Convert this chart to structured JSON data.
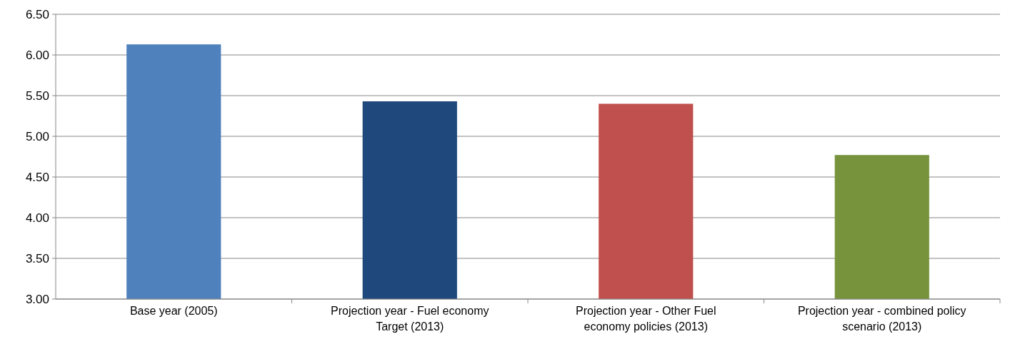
{
  "chart_data": {
    "type": "bar",
    "categories": [
      "Base year (2005)",
      "Projection year - Fuel economy Target (2013)",
      "Projection year - Other Fuel economy policies (2013)",
      "Projection year - combined policy scenario (2013)"
    ],
    "values": [
      6.13,
      5.43,
      5.4,
      4.77
    ],
    "colors": [
      "#4f81bd",
      "#1f497d",
      "#c0504d",
      "#77933c"
    ],
    "ylim": [
      3,
      6.5
    ],
    "yticks": [
      {
        "value": 3,
        "label": "3.00"
      },
      {
        "value": 3.5,
        "label": "3.50"
      },
      {
        "value": 4,
        "label": "4.00"
      },
      {
        "value": 4.5,
        "label": "4.50"
      },
      {
        "value": 5,
        "label": "5.00"
      },
      {
        "value": 5.5,
        "label": "5.50"
      },
      {
        "value": 6,
        "label": "6.00"
      },
      {
        "value": 6.5,
        "label": "6.50"
      }
    ],
    "grid": "y"
  }
}
